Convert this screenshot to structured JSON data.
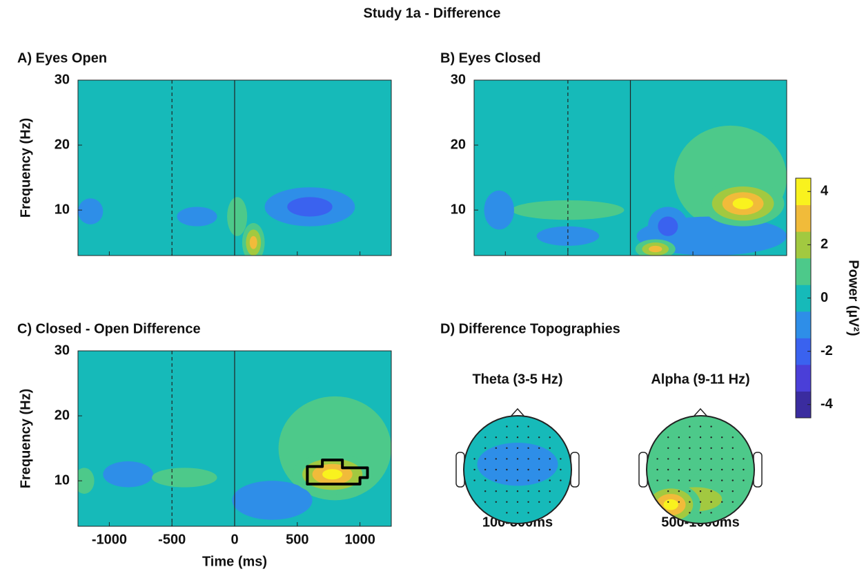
{
  "title": "Study 1a - Difference",
  "colorbar": {
    "label": "Power (µV²)",
    "lim": [
      -4,
      4
    ],
    "ticks": [
      -4,
      -2,
      0,
      2,
      4
    ],
    "colors": [
      "#3a2c9f",
      "#4a3fd8",
      "#3a62ef",
      "#2e8ee8",
      "#16bab9",
      "#4dc98a",
      "#a2c940",
      "#f1bb3a",
      "#f9f21e"
    ]
  },
  "chart_data": [
    {
      "type": "heatmap",
      "title": "A) Eyes Open",
      "ylabel": "Frequency (Hz)",
      "xlim": [
        -1250,
        1250
      ],
      "ylim": [
        3,
        30
      ],
      "yticks": [
        10,
        20,
        30
      ],
      "markers": [
        {
          "x": -500,
          "dashed": true
        },
        {
          "x": 0,
          "dashed": false
        }
      ],
      "blobs": [
        {
          "x": 600,
          "y": 10.5,
          "rx": 360,
          "ry": 3,
          "value": -2
        },
        {
          "x": -1150,
          "y": 9.8,
          "rx": 100,
          "ry": 2,
          "value": -1
        },
        {
          "x": -300,
          "y": 9,
          "rx": 160,
          "ry": 1.5,
          "value": -1
        },
        {
          "x": 20,
          "y": 9,
          "rx": 80,
          "ry": 3,
          "value": 1
        },
        {
          "x": 150,
          "y": 5,
          "rx": 90,
          "ry": 3,
          "value": 3
        }
      ]
    },
    {
      "type": "heatmap",
      "title": "B) Eyes Closed",
      "xlim": [
        -1250,
        1250
      ],
      "ylim": [
        3,
        30
      ],
      "yticks": [
        10,
        20,
        30
      ],
      "markers": [
        {
          "x": -500,
          "dashed": true
        },
        {
          "x": 0,
          "dashed": false
        }
      ],
      "blobs": [
        {
          "x": 800,
          "y": 15,
          "rx": 450,
          "ry": 8,
          "value": 1
        },
        {
          "x": 650,
          "y": 6,
          "rx": 600,
          "ry": 3,
          "value": -1
        },
        {
          "x": -500,
          "y": 10,
          "rx": 450,
          "ry": 1.5,
          "value": 1
        },
        {
          "x": -1050,
          "y": 10,
          "rx": 120,
          "ry": 3,
          "value": -1
        },
        {
          "x": -500,
          "y": 6,
          "rx": 250,
          "ry": 1.5,
          "value": -1
        },
        {
          "x": 300,
          "y": 7.5,
          "rx": 160,
          "ry": 3,
          "value": -2
        },
        {
          "x": 200,
          "y": 4,
          "rx": 160,
          "ry": 1.5,
          "value": 3
        },
        {
          "x": 900,
          "y": 11,
          "rx": 330,
          "ry": 3.5,
          "value": 4
        }
      ]
    },
    {
      "type": "heatmap",
      "title": "C)  Closed - Open Difference",
      "ylabel": "Frequency (Hz)",
      "xlabel": "Time (ms)",
      "xlim": [
        -1250,
        1250
      ],
      "ylim": [
        3,
        30
      ],
      "yticks": [
        10,
        20,
        30
      ],
      "xticks": [
        -1000,
        -500,
        0,
        500,
        1000
      ],
      "markers": [
        {
          "x": -500,
          "dashed": true
        },
        {
          "x": 0,
          "dashed": false
        }
      ],
      "blobs": [
        {
          "x": 800,
          "y": 15,
          "rx": 450,
          "ry": 8,
          "value": 1
        },
        {
          "x": -850,
          "y": 11,
          "rx": 200,
          "ry": 2,
          "value": -1
        },
        {
          "x": 300,
          "y": 7,
          "rx": 320,
          "ry": 3,
          "value": -1
        },
        {
          "x": -400,
          "y": 10.5,
          "rx": 260,
          "ry": 1.5,
          "value": 1
        },
        {
          "x": -1200,
          "y": 10,
          "rx": 80,
          "ry": 2,
          "value": 1
        },
        {
          "x": 780,
          "y": 11,
          "rx": 320,
          "ry": 3.2,
          "value": 4
        }
      ],
      "cluster": {
        "x": [
          580,
          1000,
          1000,
          1060,
          1060,
          860,
          860,
          700,
          700,
          580
        ],
        "y": [
          9.5,
          9.5,
          10.5,
          10.5,
          12,
          12,
          13.2,
          13.2,
          12.2,
          12.2
        ]
      }
    },
    {
      "type": "topography",
      "title": "D) Difference Topographies",
      "maps": [
        {
          "label": "Theta (3-5 Hz)",
          "window": "100-300ms",
          "base": 0,
          "blobs": [
            {
              "x": 0,
              "y": 0.1,
              "rx": 0.75,
              "ry": 0.4,
              "value": -1
            }
          ]
        },
        {
          "label": "Alpha (9-11 Hz)",
          "window": "500-1000ms",
          "base": 1,
          "blobs": [
            {
              "x": -0.1,
              "y": -0.55,
              "rx": 1.0,
              "ry": 0.45,
              "value": 2
            },
            {
              "x": -0.55,
              "y": -0.65,
              "rx": 0.55,
              "ry": 0.4,
              "value": 4
            }
          ]
        }
      ]
    }
  ]
}
